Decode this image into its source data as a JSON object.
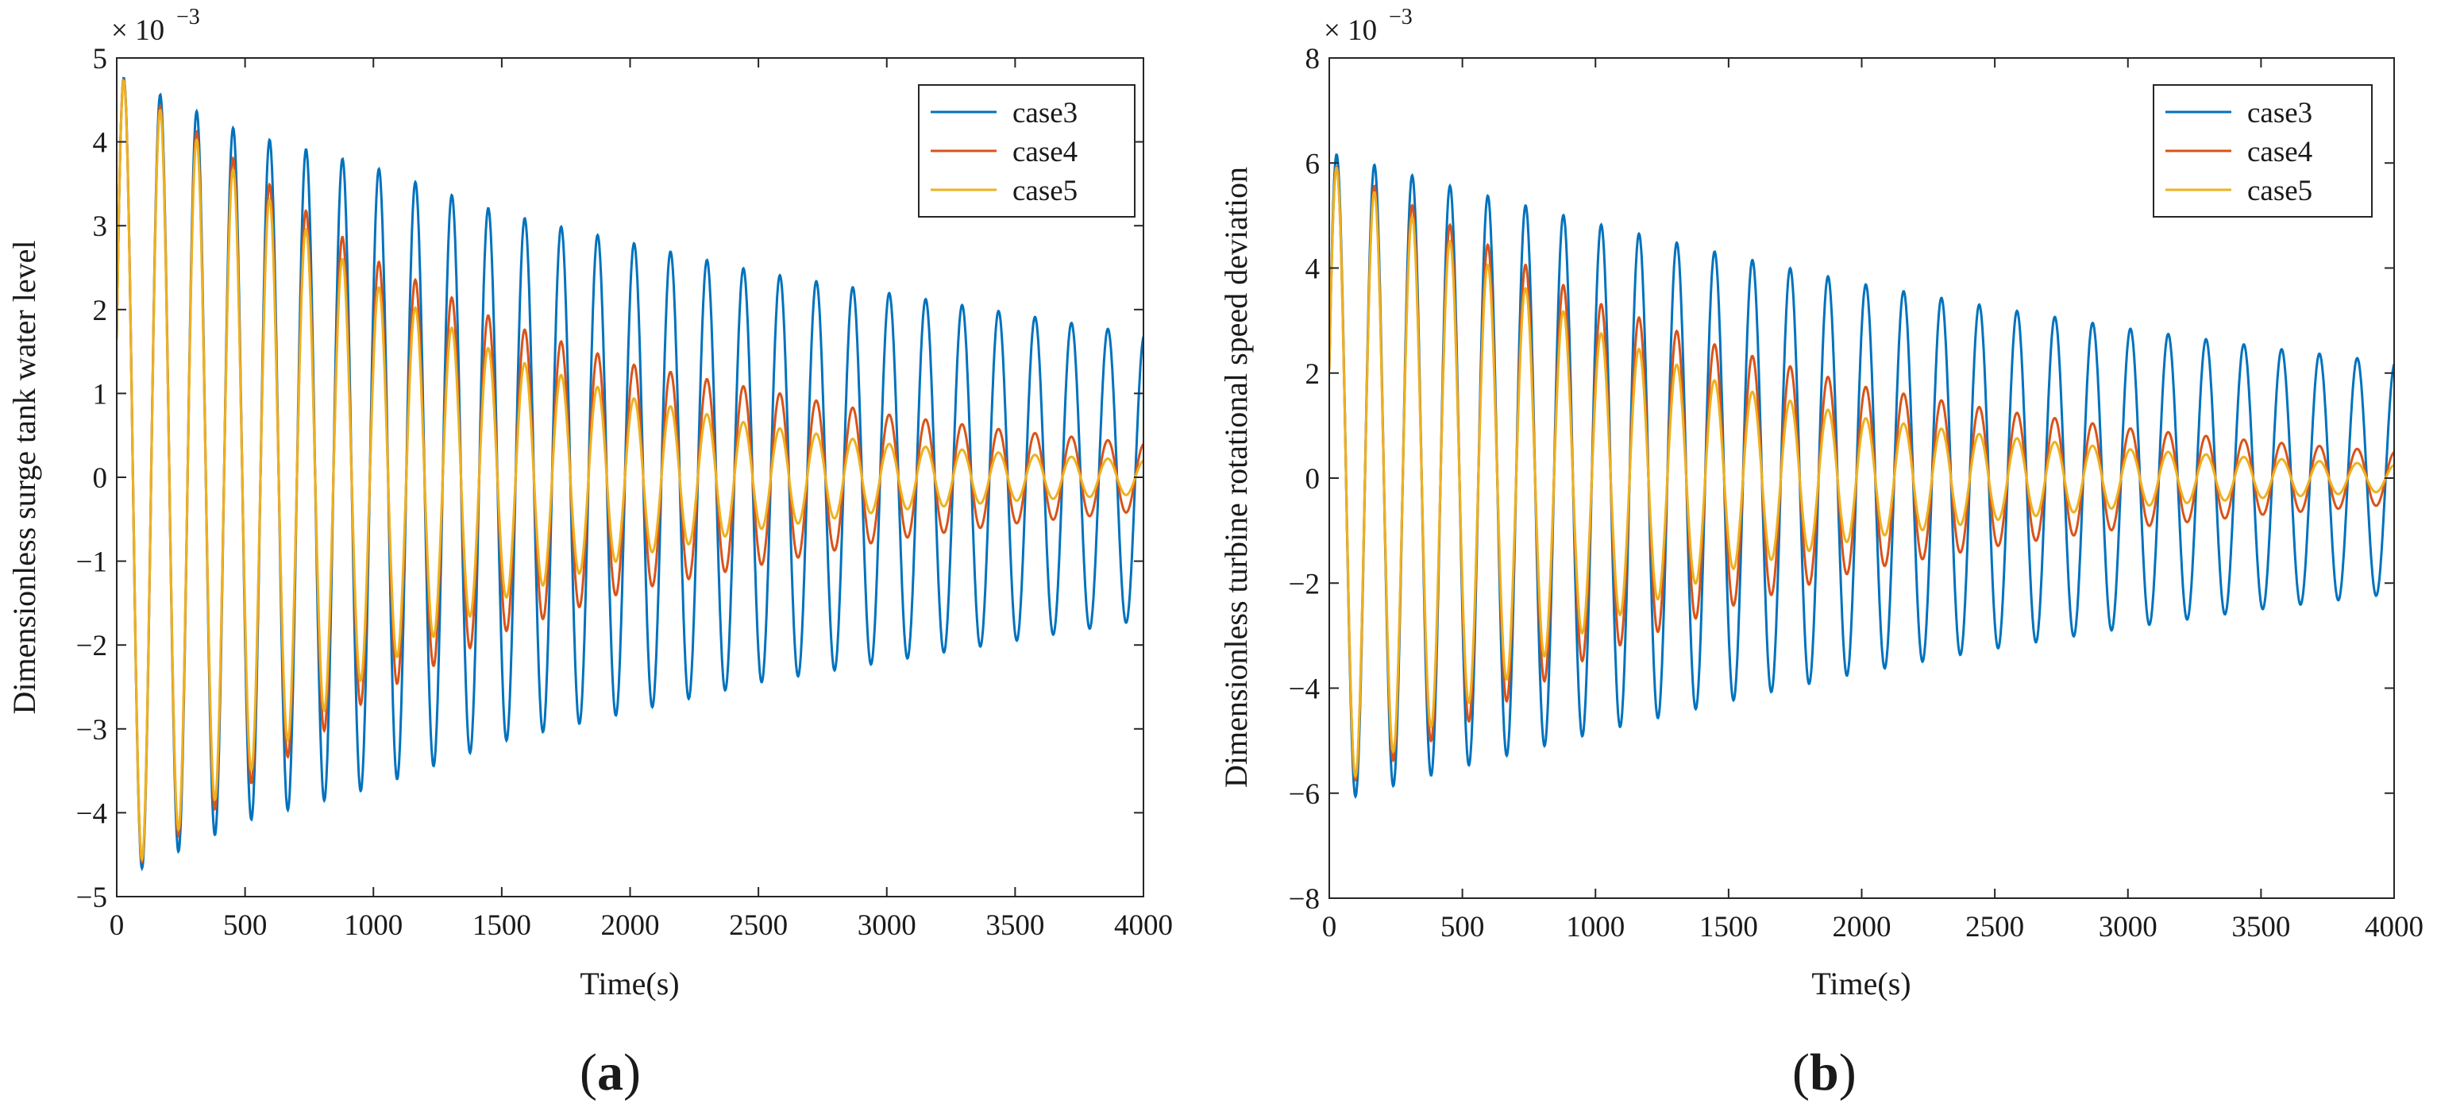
{
  "chart_data": [
    {
      "type": "line",
      "panel_label": "(a)",
      "panel_letter": "a",
      "xlabel": "Time(s)",
      "ylabel": "Dimensionless surge tank water level",
      "exponent_label": "× 10",
      "exponent_power": "−3",
      "xlim": [
        0,
        4000
      ],
      "ylim": [
        -5,
        5
      ],
      "x_ticks": [
        "0",
        "500",
        "1000",
        "1500",
        "2000",
        "2500",
        "3000",
        "3500",
        "4000"
      ],
      "y_ticks": [
        "5",
        "4",
        "3",
        "2",
        "1",
        "0",
        "−1",
        "−2",
        "−3",
        "−4",
        "−5"
      ],
      "legend_position": "top-right",
      "oscillation_period_s": 142,
      "series": [
        {
          "name": "case3",
          "color": "#0072BD",
          "x": [
            0,
            500,
            1000,
            1500,
            2000,
            2500,
            3000,
            3500,
            4000
          ],
          "amplitude": [
            4.8,
            4.1,
            3.7,
            3.15,
            2.8,
            2.45,
            2.2,
            1.95,
            1.7
          ]
        },
        {
          "name": "case4",
          "color": "#D95319",
          "x": [
            0,
            500,
            1000,
            1500,
            2000,
            2500,
            3000,
            3500,
            4000
          ],
          "amplitude": [
            4.8,
            3.7,
            2.6,
            1.85,
            1.35,
            1.05,
            0.75,
            0.55,
            0.4
          ]
        },
        {
          "name": "case5",
          "color": "#EDB120",
          "x": [
            0,
            500,
            1000,
            1500,
            2000,
            2500,
            3000,
            3500,
            4000
          ],
          "amplitude": [
            4.8,
            3.55,
            2.3,
            1.45,
            0.95,
            0.62,
            0.4,
            0.28,
            0.2
          ]
        }
      ]
    },
    {
      "type": "line",
      "panel_label": "(b)",
      "panel_letter": "b",
      "xlabel": "Time(s)",
      "ylabel": "Dimensionless turbine rotational speed deviation",
      "exponent_label": "× 10",
      "exponent_power": "−3",
      "xlim": [
        0,
        4000
      ],
      "ylim": [
        -8,
        8
      ],
      "x_ticks": [
        "0",
        "500",
        "1000",
        "1500",
        "2000",
        "2500",
        "3000",
        "3500",
        "4000"
      ],
      "y_ticks": [
        "8",
        "6",
        "4",
        "2",
        "0",
        "−2",
        "−4",
        "−6",
        "−8"
      ],
      "legend_position": "top-right",
      "oscillation_period_s": 142,
      "series": [
        {
          "name": "case3",
          "color": "#0072BD",
          "x": [
            0,
            500,
            1000,
            1500,
            2000,
            2500,
            3000,
            3500,
            4000
          ],
          "amplitude": [
            6.2,
            5.5,
            4.85,
            4.25,
            3.7,
            3.25,
            2.85,
            2.5,
            2.2
          ]
        },
        {
          "name": "case4",
          "color": "#D95319",
          "x": [
            0,
            500,
            1000,
            1500,
            2000,
            2500,
            3000,
            3500,
            4000
          ],
          "amplitude": [
            6.0,
            4.7,
            3.35,
            2.45,
            1.75,
            1.3,
            0.95,
            0.7,
            0.5
          ]
        },
        {
          "name": "case5",
          "color": "#EDB120",
          "x": [
            0,
            500,
            1000,
            1500,
            2000,
            2500,
            3000,
            3500,
            4000
          ],
          "amplitude": [
            6.0,
            4.35,
            2.8,
            1.75,
            1.15,
            0.8,
            0.55,
            0.38,
            0.25
          ]
        }
      ]
    }
  ]
}
